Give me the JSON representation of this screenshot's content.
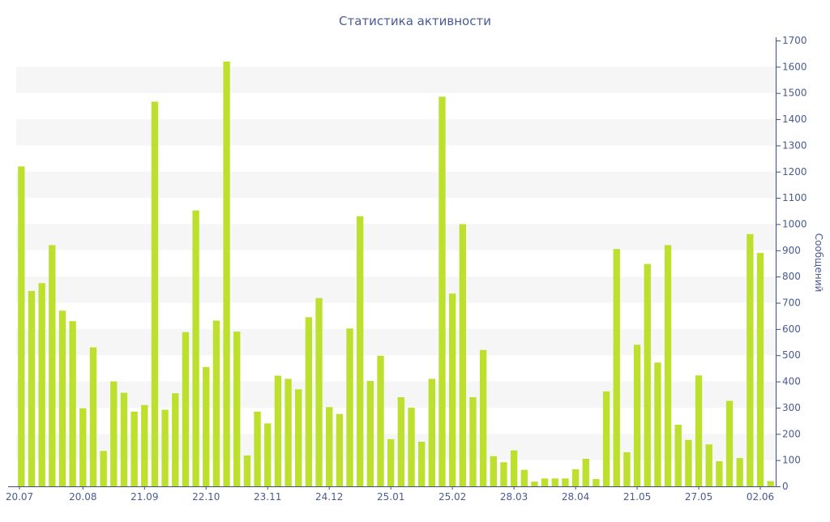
{
  "chart_data": {
    "type": "bar",
    "title": "Статистика активности",
    "ylabel": "Сообщений",
    "xlabel": "",
    "ylim": [
      0,
      1700
    ],
    "y_ticks": [
      0,
      100,
      200,
      300,
      400,
      500,
      600,
      700,
      800,
      900,
      1000,
      1100,
      1200,
      1300,
      1400,
      1500,
      1600,
      1700
    ],
    "y_axis_side": "right",
    "grid": "alternating horizontal bands",
    "x_tick_labels": [
      {
        "label": "20.07",
        "index": 0
      },
      {
        "label": "20.08",
        "index": 6
      },
      {
        "label": "21.09",
        "index": 12
      },
      {
        "label": "22.10",
        "index": 18
      },
      {
        "label": "23.11",
        "index": 24
      },
      {
        "label": "24.12",
        "index": 30
      },
      {
        "label": "25.01",
        "index": 36
      },
      {
        "label": "25.02",
        "index": 42
      },
      {
        "label": "28.03",
        "index": 48
      },
      {
        "label": "28.04",
        "index": 54
      },
      {
        "label": "21.05",
        "index": 60
      },
      {
        "label": "27.05",
        "index": 66
      },
      {
        "label": "02.06",
        "index": 72
      }
    ],
    "values": [
      1220,
      745,
      775,
      920,
      670,
      630,
      298,
      530,
      135,
      400,
      357,
      285,
      310,
      1467,
      292,
      355,
      588,
      1052,
      455,
      632,
      1620,
      590,
      118,
      285,
      240,
      422,
      410,
      370,
      645,
      718,
      302,
      276,
      602,
      1030,
      402,
      498,
      180,
      340,
      300,
      170,
      410,
      1486,
      735,
      1000,
      340,
      520,
      115,
      92,
      137,
      63,
      18,
      30,
      30,
      30,
      65,
      105,
      28,
      362,
      905,
      130,
      540,
      848,
      472,
      920,
      235,
      177,
      423,
      160,
      96,
      326,
      108,
      962,
      890,
      20
    ],
    "colors": {
      "bar": "#bde02e",
      "text": "#4a5a96",
      "band": "#f6f6f6",
      "axis": "#3d4c8c"
    }
  }
}
